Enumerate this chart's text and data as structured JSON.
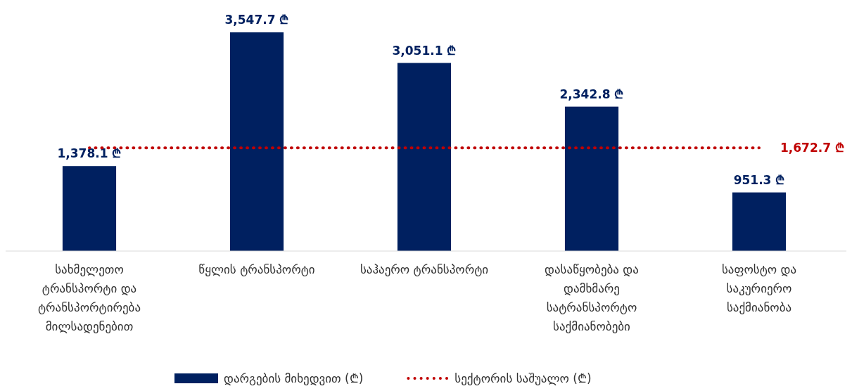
{
  "chart_data": {
    "type": "bar",
    "categories": [
      "სახმელეთო ტრანსპორტი და ტრანსპორტირება მილსადენებით",
      "წყლის ტრანსპორტი",
      "საჰაერო ტრანსპორტი",
      "დასაწყობება და დამხმარე სატრანსპორტო საქმიანობები",
      "საფოსტო და საკურიერო საქმიანობა"
    ],
    "series": [
      {
        "name": "დარგების მიხედვით (₾)",
        "color": "#002060",
        "values": [
          1378.1,
          3547.7,
          3051.1,
          2342.8,
          951.3
        ],
        "value_labels": [
          "1,378.1 ₾",
          "3,547.7 ₾",
          "3,051.1 ₾",
          "2,342.8 ₾",
          "951.3 ₾"
        ]
      },
      {
        "name": "სექტორის საშუალო (₾)",
        "type": "line",
        "color": "#c00000",
        "line_style": "dotted",
        "values": [
          1672.7,
          1672.7,
          1672.7,
          1672.7,
          1672.7
        ],
        "value_labels": [
          null,
          null,
          null,
          null,
          "1,672.7 ₾"
        ]
      }
    ],
    "legend": "bottom"
  }
}
